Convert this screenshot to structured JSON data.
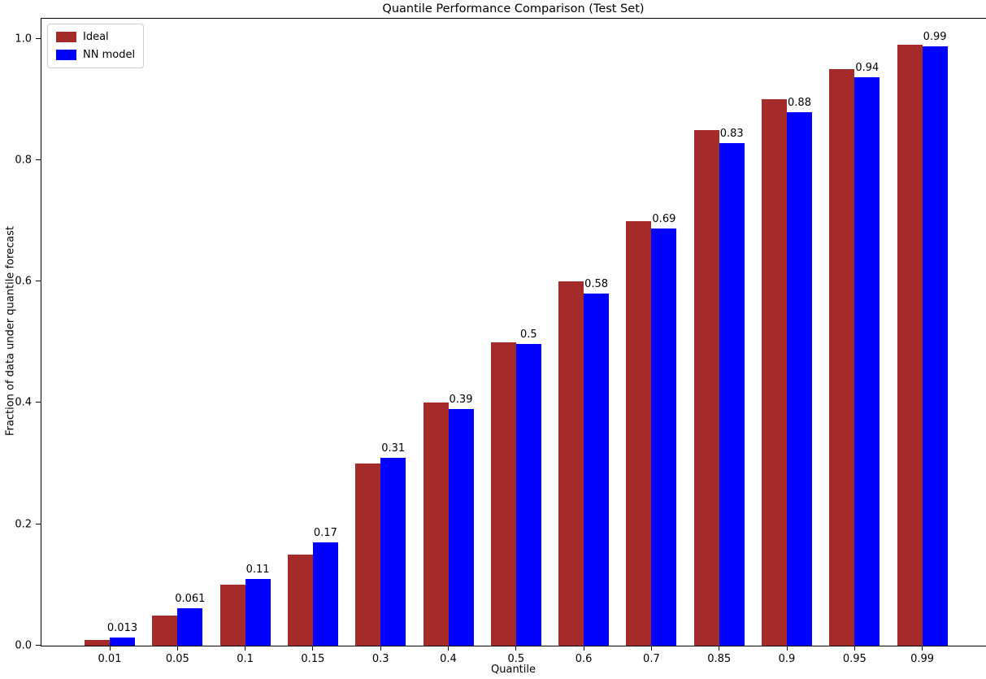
{
  "chart_data": {
    "type": "bar",
    "title": "Quantile Performance Comparison (Test Set)",
    "xlabel": "Quantile",
    "ylabel": "Fraction of data under quantile forecast",
    "categories": [
      "0.01",
      "0.05",
      "0.1",
      "0.15",
      "0.3",
      "0.4",
      "0.5",
      "0.6",
      "0.7",
      "0.85",
      "0.9",
      "0.95",
      "0.99"
    ],
    "series": [
      {
        "name": "Ideal",
        "color": "#a52a2a",
        "values": [
          0.01,
          0.05,
          0.1,
          0.15,
          0.3,
          0.4,
          0.5,
          0.6,
          0.7,
          0.85,
          0.9,
          0.95,
          0.99
        ]
      },
      {
        "name": "NN model",
        "color": "#0000ff",
        "values": [
          0.013,
          0.061,
          0.11,
          0.17,
          0.31,
          0.39,
          0.497,
          0.58,
          0.688,
          0.828,
          0.879,
          0.936,
          0.987
        ],
        "bar_labels": [
          "0.013",
          "0.061",
          "0.11",
          "0.17",
          "0.31",
          "0.39",
          "0.5",
          "0.58",
          "0.69",
          "0.83",
          "0.88",
          "0.94",
          "0.99"
        ]
      }
    ],
    "ytick_labels": [
      "0.0",
      "0.2",
      "0.4",
      "0.6",
      "0.8",
      "1.0"
    ],
    "ylim": [
      0.0,
      1.033
    ],
    "grid": false,
    "legend_position": "upper left",
    "axis_color": "#000000",
    "background_color": "#ffffff"
  }
}
